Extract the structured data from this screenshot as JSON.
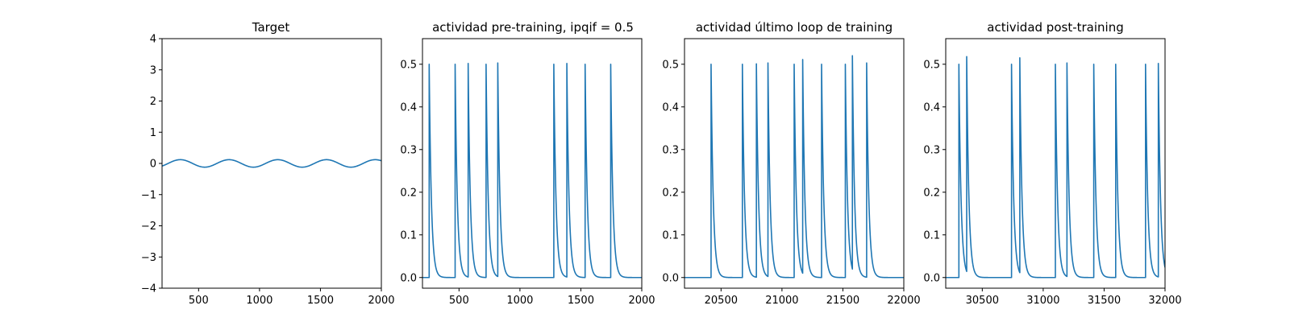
{
  "chart_data": [
    {
      "type": "line",
      "title": "Target",
      "xlim": [
        200,
        2000
      ],
      "ylim": [
        -4,
        4
      ],
      "xticks": [
        500,
        1000,
        1500,
        2000
      ],
      "yticks": [
        -4,
        -3,
        -2,
        -1,
        0,
        1,
        2,
        3,
        4
      ],
      "series": [
        {
          "kind": "sine",
          "amplitude": 0.12,
          "period": 400,
          "peak_x": 350,
          "x_range": [
            200,
            2000
          ]
        }
      ],
      "color": "#1f77b4"
    },
    {
      "type": "line",
      "title": "actividad pre-training, ipqif = 0.5",
      "xlim": [
        200,
        2000
      ],
      "ylim": [
        -0.025,
        0.56
      ],
      "xticks": [
        500,
        1000,
        1500,
        2000
      ],
      "yticks": [
        0.0,
        0.1,
        0.2,
        0.3,
        0.4,
        0.5
      ],
      "series": [
        {
          "kind": "spikes",
          "x_range": [
            200,
            2000
          ],
          "decay": 18,
          "spike_times": [
            255,
            468,
            575,
            722,
            818,
            1278,
            1385,
            1535,
            1745
          ],
          "peaks": [
            0.5,
            0.5,
            0.502,
            0.5,
            0.503,
            0.5,
            0.502,
            0.5,
            0.5
          ]
        }
      ],
      "color": "#1f77b4"
    },
    {
      "type": "line",
      "title": "actividad último loop de training",
      "xlim": [
        20200,
        22000
      ],
      "ylim": [
        -0.025,
        0.56
      ],
      "xticks": [
        20500,
        21000,
        21500,
        22000
      ],
      "yticks": [
        0.0,
        0.1,
        0.2,
        0.3,
        0.4,
        0.5
      ],
      "series": [
        {
          "kind": "spikes",
          "x_range": [
            20200,
            22000
          ],
          "decay": 18,
          "spike_times": [
            20418,
            20675,
            20790,
            20885,
            21100,
            21170,
            21325,
            21520,
            21578,
            21695
          ],
          "peaks": [
            0.5,
            0.5,
            0.501,
            0.503,
            0.5,
            0.511,
            0.5,
            0.5,
            0.52,
            0.503
          ]
        }
      ],
      "color": "#1f77b4"
    },
    {
      "type": "line",
      "title": "actividad post-training",
      "xlim": [
        30200,
        32000
      ],
      "ylim": [
        -0.025,
        0.56
      ],
      "xticks": [
        30500,
        31000,
        31500,
        32000
      ],
      "yticks": [
        0.0,
        0.1,
        0.2,
        0.3,
        0.4,
        0.5
      ],
      "series": [
        {
          "kind": "spikes",
          "x_range": [
            30200,
            32000
          ],
          "decay": 18,
          "spike_times": [
            30308,
            30372,
            30740,
            30808,
            31100,
            31195,
            31415,
            31595,
            31840,
            31945
          ],
          "peaks": [
            0.5,
            0.518,
            0.5,
            0.515,
            0.5,
            0.503,
            0.5,
            0.5,
            0.5,
            0.502
          ]
        }
      ],
      "color": "#1f77b4"
    }
  ]
}
